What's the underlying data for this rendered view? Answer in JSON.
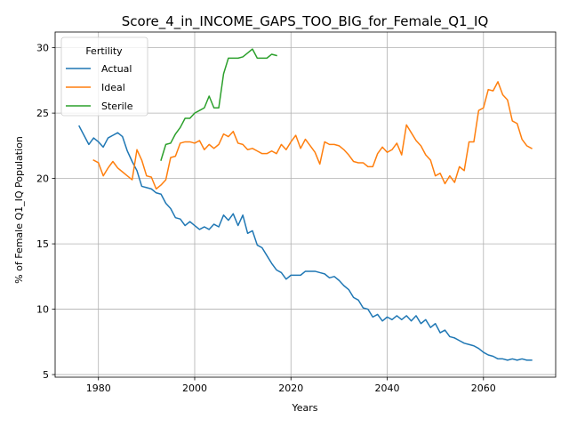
{
  "chart_data": {
    "type": "line",
    "title": "Score_4_in_INCOME_GAPS_TOO_BIG_for_Female_Q1_IQ",
    "xlabel": "Years",
    "ylabel": "% of Female Q1_IQ Population",
    "xlim": [
      1971,
      2075
    ],
    "ylim": [
      4.8,
      31.2
    ],
    "xticks": [
      1980,
      2000,
      2020,
      2040,
      2060
    ],
    "yticks": [
      5,
      10,
      15,
      20,
      25,
      30
    ],
    "grid": true,
    "legend": {
      "title": "Fertility",
      "placement": "top-left"
    },
    "series": [
      {
        "name": "Actual",
        "color": "#1f77b4",
        "x": [
          1976,
          1977,
          1978,
          1979,
          1980,
          1981,
          1982,
          1983,
          1984,
          1985,
          1986,
          1987,
          1988,
          1989,
          1990,
          1991,
          1992,
          1993,
          1994,
          1995,
          1996,
          1997,
          1998,
          1999,
          2000,
          2001,
          2002,
          2003,
          2004,
          2005,
          2006,
          2007,
          2008,
          2009,
          2010,
          2011,
          2012,
          2013,
          2014,
          2015,
          2016,
          2017,
          2018,
          2019,
          2020,
          2021,
          2022,
          2023,
          2024,
          2025,
          2026,
          2027,
          2028,
          2029,
          2030,
          2031,
          2032,
          2033,
          2034,
          2035,
          2036,
          2037,
          2038,
          2039,
          2040,
          2041,
          2042,
          2043,
          2044,
          2045,
          2046,
          2047,
          2048,
          2049,
          2050,
          2051,
          2052,
          2053,
          2054,
          2055,
          2056,
          2057,
          2058,
          2059,
          2060,
          2061,
          2062,
          2063,
          2064,
          2065,
          2066,
          2067,
          2068,
          2069,
          2070
        ],
        "values": [
          24.0,
          23.3,
          22.6,
          23.1,
          22.8,
          22.4,
          23.1,
          23.3,
          23.5,
          23.2,
          22.1,
          21.3,
          20.6,
          19.4,
          19.3,
          19.2,
          18.9,
          18.8,
          18.1,
          17.7,
          17.0,
          16.9,
          16.4,
          16.7,
          16.4,
          16.1,
          16.3,
          16.1,
          16.5,
          16.3,
          17.2,
          16.8,
          17.3,
          16.4,
          17.2,
          15.8,
          16.0,
          14.9,
          14.7,
          14.1,
          13.5,
          13.0,
          12.8,
          12.3,
          12.6,
          12.6,
          12.6,
          12.9,
          12.9,
          12.9,
          12.8,
          12.7,
          12.4,
          12.5,
          12.2,
          11.8,
          11.5,
          10.9,
          10.7,
          10.1,
          10.0,
          9.4,
          9.6,
          9.1,
          9.4,
          9.2,
          9.5,
          9.2,
          9.5,
          9.1,
          9.5,
          8.9,
          9.2,
          8.6,
          8.9,
          8.2,
          8.4,
          7.9,
          7.8,
          7.6,
          7.4,
          7.3,
          7.2,
          7.0,
          6.7,
          6.5,
          6.4,
          6.2,
          6.2,
          6.1,
          6.2,
          6.1,
          6.2,
          6.1,
          6.1
        ]
      },
      {
        "name": "Ideal",
        "color": "#ff7f0e",
        "x": [
          1979,
          1980,
          1981,
          1982,
          1983,
          1984,
          1985,
          1986,
          1987,
          1988,
          1989,
          1990,
          1991,
          1992,
          1993,
          1994,
          1995,
          1996,
          1997,
          1998,
          1999,
          2000,
          2001,
          2002,
          2003,
          2004,
          2005,
          2006,
          2007,
          2008,
          2009,
          2010,
          2011,
          2012,
          2013,
          2014,
          2015,
          2016,
          2017,
          2018,
          2019,
          2020,
          2021,
          2022,
          2023,
          2024,
          2025,
          2026,
          2027,
          2028,
          2029,
          2030,
          2031,
          2032,
          2033,
          2034,
          2035,
          2036,
          2037,
          2038,
          2039,
          2040,
          2041,
          2042,
          2043,
          2044,
          2045,
          2046,
          2047,
          2048,
          2049,
          2050,
          2051,
          2052,
          2053,
          2054,
          2055,
          2056,
          2057,
          2058,
          2059,
          2060,
          2061,
          2062,
          2063,
          2064,
          2065,
          2066,
          2067,
          2068,
          2069,
          2070
        ],
        "values": [
          21.4,
          21.2,
          20.2,
          20.8,
          21.3,
          20.8,
          20.5,
          20.2,
          19.9,
          22.2,
          21.4,
          20.2,
          20.1,
          19.2,
          19.5,
          19.9,
          21.6,
          21.7,
          22.7,
          22.8,
          22.8,
          22.7,
          22.9,
          22.2,
          22.6,
          22.3,
          22.6,
          23.4,
          23.2,
          23.6,
          22.7,
          22.6,
          22.2,
          22.3,
          22.1,
          21.9,
          21.9,
          22.1,
          21.9,
          22.6,
          22.2,
          22.8,
          23.3,
          22.3,
          23.0,
          22.5,
          22.0,
          21.1,
          22.8,
          22.6,
          22.6,
          22.5,
          22.2,
          21.8,
          21.3,
          21.2,
          21.2,
          20.9,
          20.9,
          21.9,
          22.4,
          22.0,
          22.2,
          22.7,
          21.8,
          24.1,
          23.5,
          22.9,
          22.5,
          21.8,
          21.4,
          20.2,
          20.4,
          19.6,
          20.2,
          19.7,
          20.9,
          20.6,
          22.8,
          22.8,
          25.2,
          25.4,
          26.8,
          26.7,
          27.4,
          26.4,
          26.0,
          24.4,
          24.2,
          23.0,
          22.5,
          22.3
        ]
      },
      {
        "name": "Sterile",
        "color": "#2ca02c",
        "x": [
          1993,
          1994,
          1995,
          1996,
          1997,
          1998,
          1999,
          2000,
          2001,
          2002,
          2003,
          2004,
          2005,
          2006,
          2007,
          2008,
          2009,
          2010,
          2011,
          2012,
          2013,
          2014,
          2015,
          2016,
          2017
        ],
        "values": [
          21.4,
          22.6,
          22.7,
          23.4,
          23.9,
          24.6,
          24.6,
          25.0,
          25.2,
          25.4,
          26.3,
          25.4,
          25.4,
          28.0,
          29.2,
          29.2,
          29.2,
          29.3,
          29.6,
          29.9,
          29.2,
          29.2,
          29.2,
          29.5,
          29.4
        ]
      }
    ]
  }
}
